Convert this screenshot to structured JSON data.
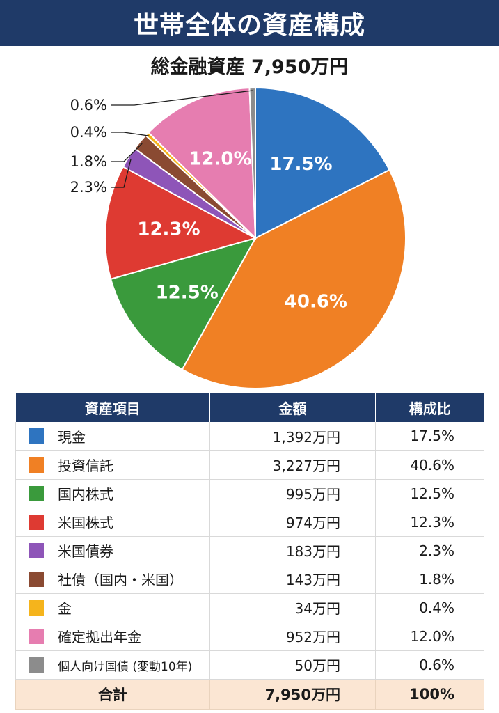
{
  "title": "世帯全体の資産構成",
  "subtitle": "総金融資産 7,950万円",
  "chart_data": {
    "type": "pie",
    "title": "世帯全体の資産構成",
    "subtitle": "総金融資産 7,950万円",
    "slices": [
      {
        "label": "現金",
        "value": 1392,
        "percent_label": "17.5%",
        "color": "#2e74c0"
      },
      {
        "label": "投資信託",
        "value": 3227,
        "percent_label": "40.6%",
        "color": "#f08024"
      },
      {
        "label": "国内株式",
        "value": 995,
        "percent_label": "12.5%",
        "color": "#3a9a3c"
      },
      {
        "label": "米国株式",
        "value": 974,
        "percent_label": "12.3%",
        "color": "#de3a32"
      },
      {
        "label": "米国債券",
        "value": 183,
        "percent_label": "2.3%",
        "color": "#8e55b8"
      },
      {
        "label": "社債（国内・米国）",
        "value": 143,
        "percent_label": "1.8%",
        "color": "#8a4a32"
      },
      {
        "label": "金",
        "value": 34,
        "percent_label": "0.4%",
        "color": "#f5b41c"
      },
      {
        "label": "確定拠出年金",
        "value": 952,
        "percent_label": "12.0%",
        "color": "#e67db0"
      },
      {
        "label": "個人向け国債 (変動10年)",
        "value": 50,
        "percent_label": "0.6%",
        "color": "#8c8c8c"
      }
    ]
  },
  "table": {
    "headers": [
      "資産項目",
      "金額",
      "構成比"
    ],
    "rows": [
      {
        "name": "現金",
        "amount": "1,392万円",
        "pct": "17.5%",
        "color": "#2e74c0"
      },
      {
        "name": "投資信託",
        "amount": "3,227万円",
        "pct": "40.6%",
        "color": "#f08024"
      },
      {
        "name": "国内株式",
        "amount": "995万円",
        "pct": "12.5%",
        "color": "#3a9a3c"
      },
      {
        "name": "米国株式",
        "amount": "974万円",
        "pct": "12.3%",
        "color": "#de3a32"
      },
      {
        "name": "米国債券",
        "amount": "183万円",
        "pct": "2.3%",
        "color": "#8e55b8"
      },
      {
        "name": "社債（国内・米国）",
        "amount": "143万円",
        "pct": "1.8%",
        "color": "#8a4a32"
      },
      {
        "name": "金",
        "amount": "34万円",
        "pct": "0.4%",
        "color": "#f5b41c"
      },
      {
        "name": "確定拠出年金",
        "amount": "952万円",
        "pct": "12.0%",
        "color": "#e67db0"
      },
      {
        "name": "個人向け国債 (変動10年)",
        "amount": "50万円",
        "pct": "0.6%",
        "color": "#8c8c8c"
      }
    ],
    "total": {
      "label": "合計",
      "amount": "7,950万円",
      "pct": "100%"
    }
  }
}
